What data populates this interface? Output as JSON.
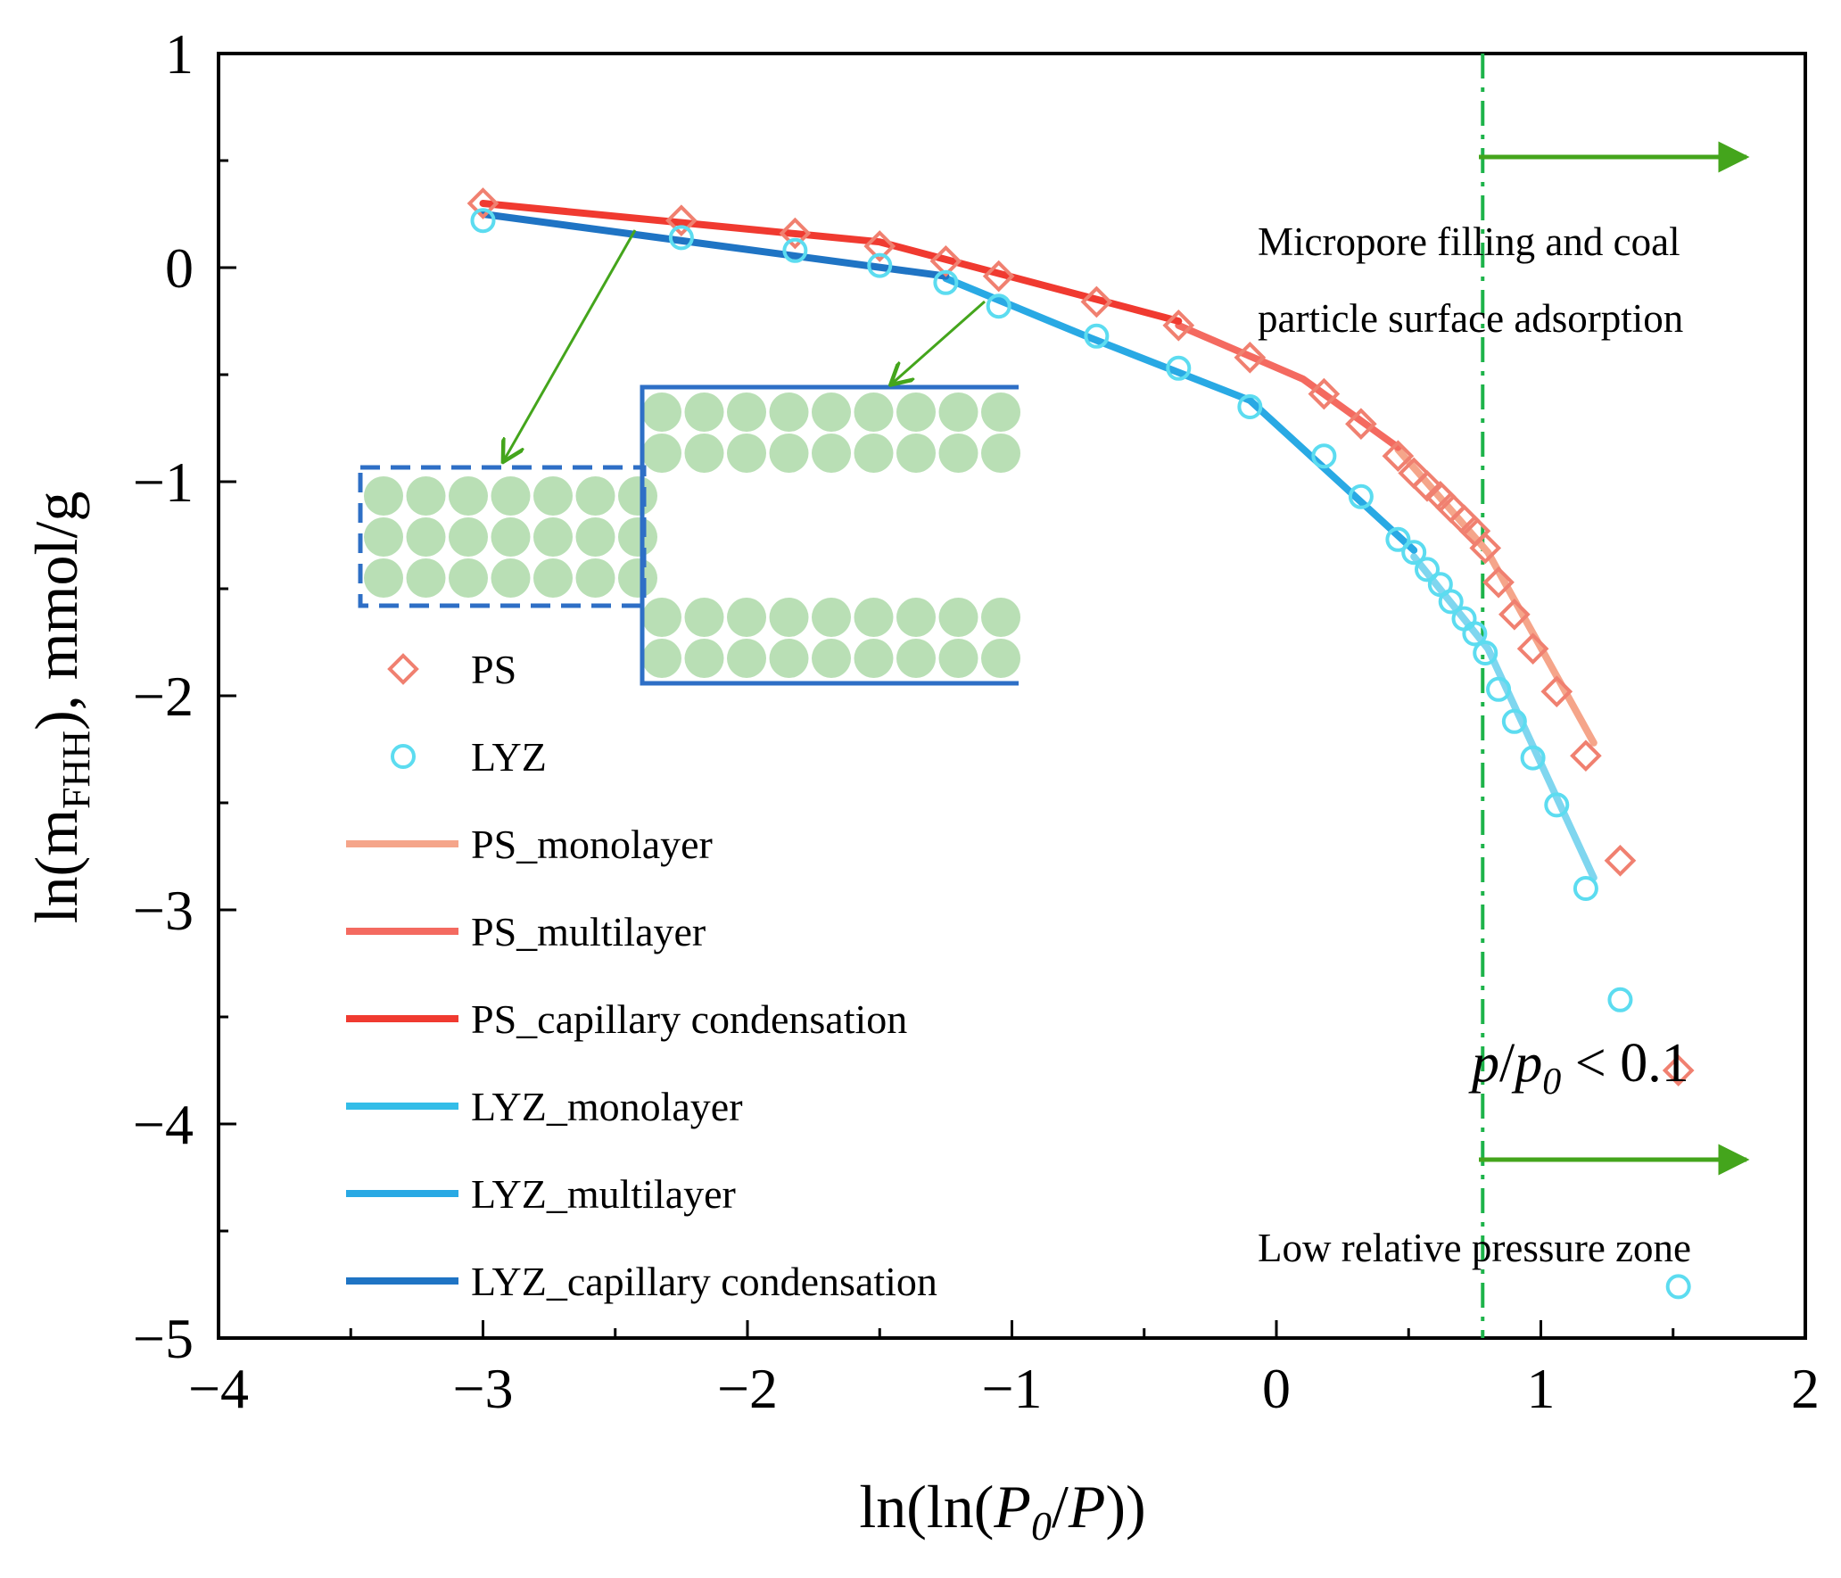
{
  "chart_data": {
    "type": "scatter",
    "xlabel_parts": [
      "ln(ln(",
      "P",
      "0",
      "/",
      "P",
      "))"
    ],
    "ylabel_parts": [
      "ln(m",
      "FHH",
      "), mmol/g"
    ],
    "xlim": [
      -4,
      2
    ],
    "ylim": [
      -5,
      1
    ],
    "x_ticks": [
      {
        "value": -4,
        "label": "−4"
      },
      {
        "value": -3,
        "label": "−3"
      },
      {
        "value": -2,
        "label": "−2"
      },
      {
        "value": -1,
        "label": "−1"
      },
      {
        "value": 0,
        "label": "0"
      },
      {
        "value": 1,
        "label": "1"
      },
      {
        "value": 2,
        "label": "2"
      }
    ],
    "y_ticks": [
      {
        "value": 1,
        "label": "1"
      },
      {
        "value": 0,
        "label": "0"
      },
      {
        "value": -1,
        "label": "−1"
      },
      {
        "value": -2,
        "label": "−2"
      },
      {
        "value": -3,
        "label": "−3"
      },
      {
        "value": -4,
        "label": "−4"
      },
      {
        "value": -5,
        "label": "−5"
      }
    ],
    "grid": false,
    "legend_placement": "left",
    "scatter_series": [
      {
        "name": "PS",
        "marker": "diamond",
        "color": "#f08070",
        "points": [
          [
            -3.0,
            0.3
          ],
          [
            -2.25,
            0.22
          ],
          [
            -1.82,
            0.16
          ],
          [
            -1.5,
            0.1
          ],
          [
            -1.25,
            0.03
          ],
          [
            -1.05,
            -0.04
          ],
          [
            -0.68,
            -0.16
          ],
          [
            -0.37,
            -0.27
          ],
          [
            -0.1,
            -0.42
          ],
          [
            0.18,
            -0.59
          ],
          [
            0.32,
            -0.73
          ],
          [
            0.46,
            -0.88
          ],
          [
            0.52,
            -0.96
          ],
          [
            0.57,
            -1.02
          ],
          [
            0.62,
            -1.07
          ],
          [
            0.66,
            -1.12
          ],
          [
            0.71,
            -1.18
          ],
          [
            0.75,
            -1.23
          ],
          [
            0.79,
            -1.31
          ],
          [
            0.84,
            -1.47
          ],
          [
            0.9,
            -1.62
          ],
          [
            0.97,
            -1.78
          ],
          [
            1.06,
            -1.98
          ],
          [
            1.17,
            -2.28
          ],
          [
            1.3,
            -2.77
          ],
          [
            1.52,
            -3.75
          ]
        ]
      },
      {
        "name": "LYZ",
        "marker": "circle",
        "color": "#5cdcf0",
        "points": [
          [
            -3.0,
            0.22
          ],
          [
            -2.25,
            0.14
          ],
          [
            -1.82,
            0.08
          ],
          [
            -1.5,
            0.01
          ],
          [
            -1.25,
            -0.07
          ],
          [
            -1.05,
            -0.18
          ],
          [
            -0.68,
            -0.32
          ],
          [
            -0.37,
            -0.47
          ],
          [
            -0.1,
            -0.65
          ],
          [
            0.18,
            -0.88
          ],
          [
            0.32,
            -1.07
          ],
          [
            0.46,
            -1.27
          ],
          [
            0.52,
            -1.33
          ],
          [
            0.57,
            -1.41
          ],
          [
            0.62,
            -1.48
          ],
          [
            0.66,
            -1.56
          ],
          [
            0.71,
            -1.64
          ],
          [
            0.75,
            -1.71
          ],
          [
            0.79,
            -1.8
          ],
          [
            0.84,
            -1.97
          ],
          [
            0.9,
            -2.12
          ],
          [
            0.97,
            -2.29
          ],
          [
            1.06,
            -2.51
          ],
          [
            1.17,
            -2.9
          ],
          [
            1.3,
            -3.42
          ],
          [
            1.52,
            -4.76
          ]
        ]
      }
    ],
    "line_series": [
      {
        "name": "PS_monolayer",
        "color": "#f5a58a",
        "points": [
          [
            0.46,
            -0.85
          ],
          [
            0.8,
            -1.33
          ],
          [
            1.2,
            -2.22
          ]
        ]
      },
      {
        "name": "PS_multilayer",
        "color": "#f46a60",
        "points": [
          [
            -0.37,
            -0.27
          ],
          [
            0.1,
            -0.52
          ],
          [
            0.46,
            -0.84
          ]
        ]
      },
      {
        "name": "PS_capillary condensation",
        "color": "#f03a30",
        "points": [
          [
            -3.0,
            0.3
          ],
          [
            -1.5,
            0.12
          ],
          [
            -0.37,
            -0.25
          ]
        ]
      },
      {
        "name": "LYZ_monolayer",
        "color": "#7fd6ef",
        "points": [
          [
            0.52,
            -1.35
          ],
          [
            0.8,
            -1.78
          ],
          [
            1.2,
            -2.85
          ]
        ]
      },
      {
        "name": "LYZ_multilayer",
        "color": "#29a9e4",
        "points": [
          [
            -1.25,
            -0.05
          ],
          [
            -0.7,
            -0.33
          ],
          [
            -0.1,
            -0.62
          ]
        ]
      },
      {
        "name": "LYZ_capillary condensation",
        "color": "#1f74c4",
        "points": [
          [
            -3.0,
            0.25
          ],
          [
            -1.25,
            -0.04
          ]
        ]
      },
      {
        "name": "",
        "color": "#29a9e4",
        "points": [
          [
            -0.1,
            -0.62
          ],
          [
            0.52,
            -1.32
          ]
        ]
      }
    ],
    "legend_entries": [
      {
        "label": "PS",
        "kind": "diamond",
        "color": "#f08070"
      },
      {
        "label": "LYZ",
        "kind": "circle",
        "color": "#5cdcf0"
      },
      {
        "label": "PS_monolayer",
        "kind": "line",
        "color": "#f5a58a"
      },
      {
        "label": "PS_multilayer",
        "kind": "line",
        "color": "#f46a60"
      },
      {
        "label": "PS_capillary condensation",
        "kind": "line",
        "color": "#f03a30"
      },
      {
        "label": "LYZ_monolayer",
        "kind": "line",
        "color": "#33bde8"
      },
      {
        "label": "LYZ_multilayer",
        "kind": "line",
        "color": "#29a9e4"
      },
      {
        "label": "LYZ_capillary condensation",
        "kind": "line",
        "color": "#1f74c4"
      }
    ],
    "vertical_line": {
      "x": 0.78,
      "style": "dash-dot",
      "color": "#1db34a"
    },
    "annotations": {
      "micropore_line1": "Micropore filling and coal",
      "micropore_line2": "particle surface adsorption",
      "pressure_p": "p",
      "pressure_slash": "/",
      "pressure_p0": "p",
      "pressure_sub0": "0",
      "pressure_rest": " < 0.1",
      "low_pressure": "Low relative pressure zone"
    },
    "arrow_color": "#44a51c",
    "pore_fill_color": "#b9dfb5",
    "pore_wall_color": "#2e6fc6"
  }
}
